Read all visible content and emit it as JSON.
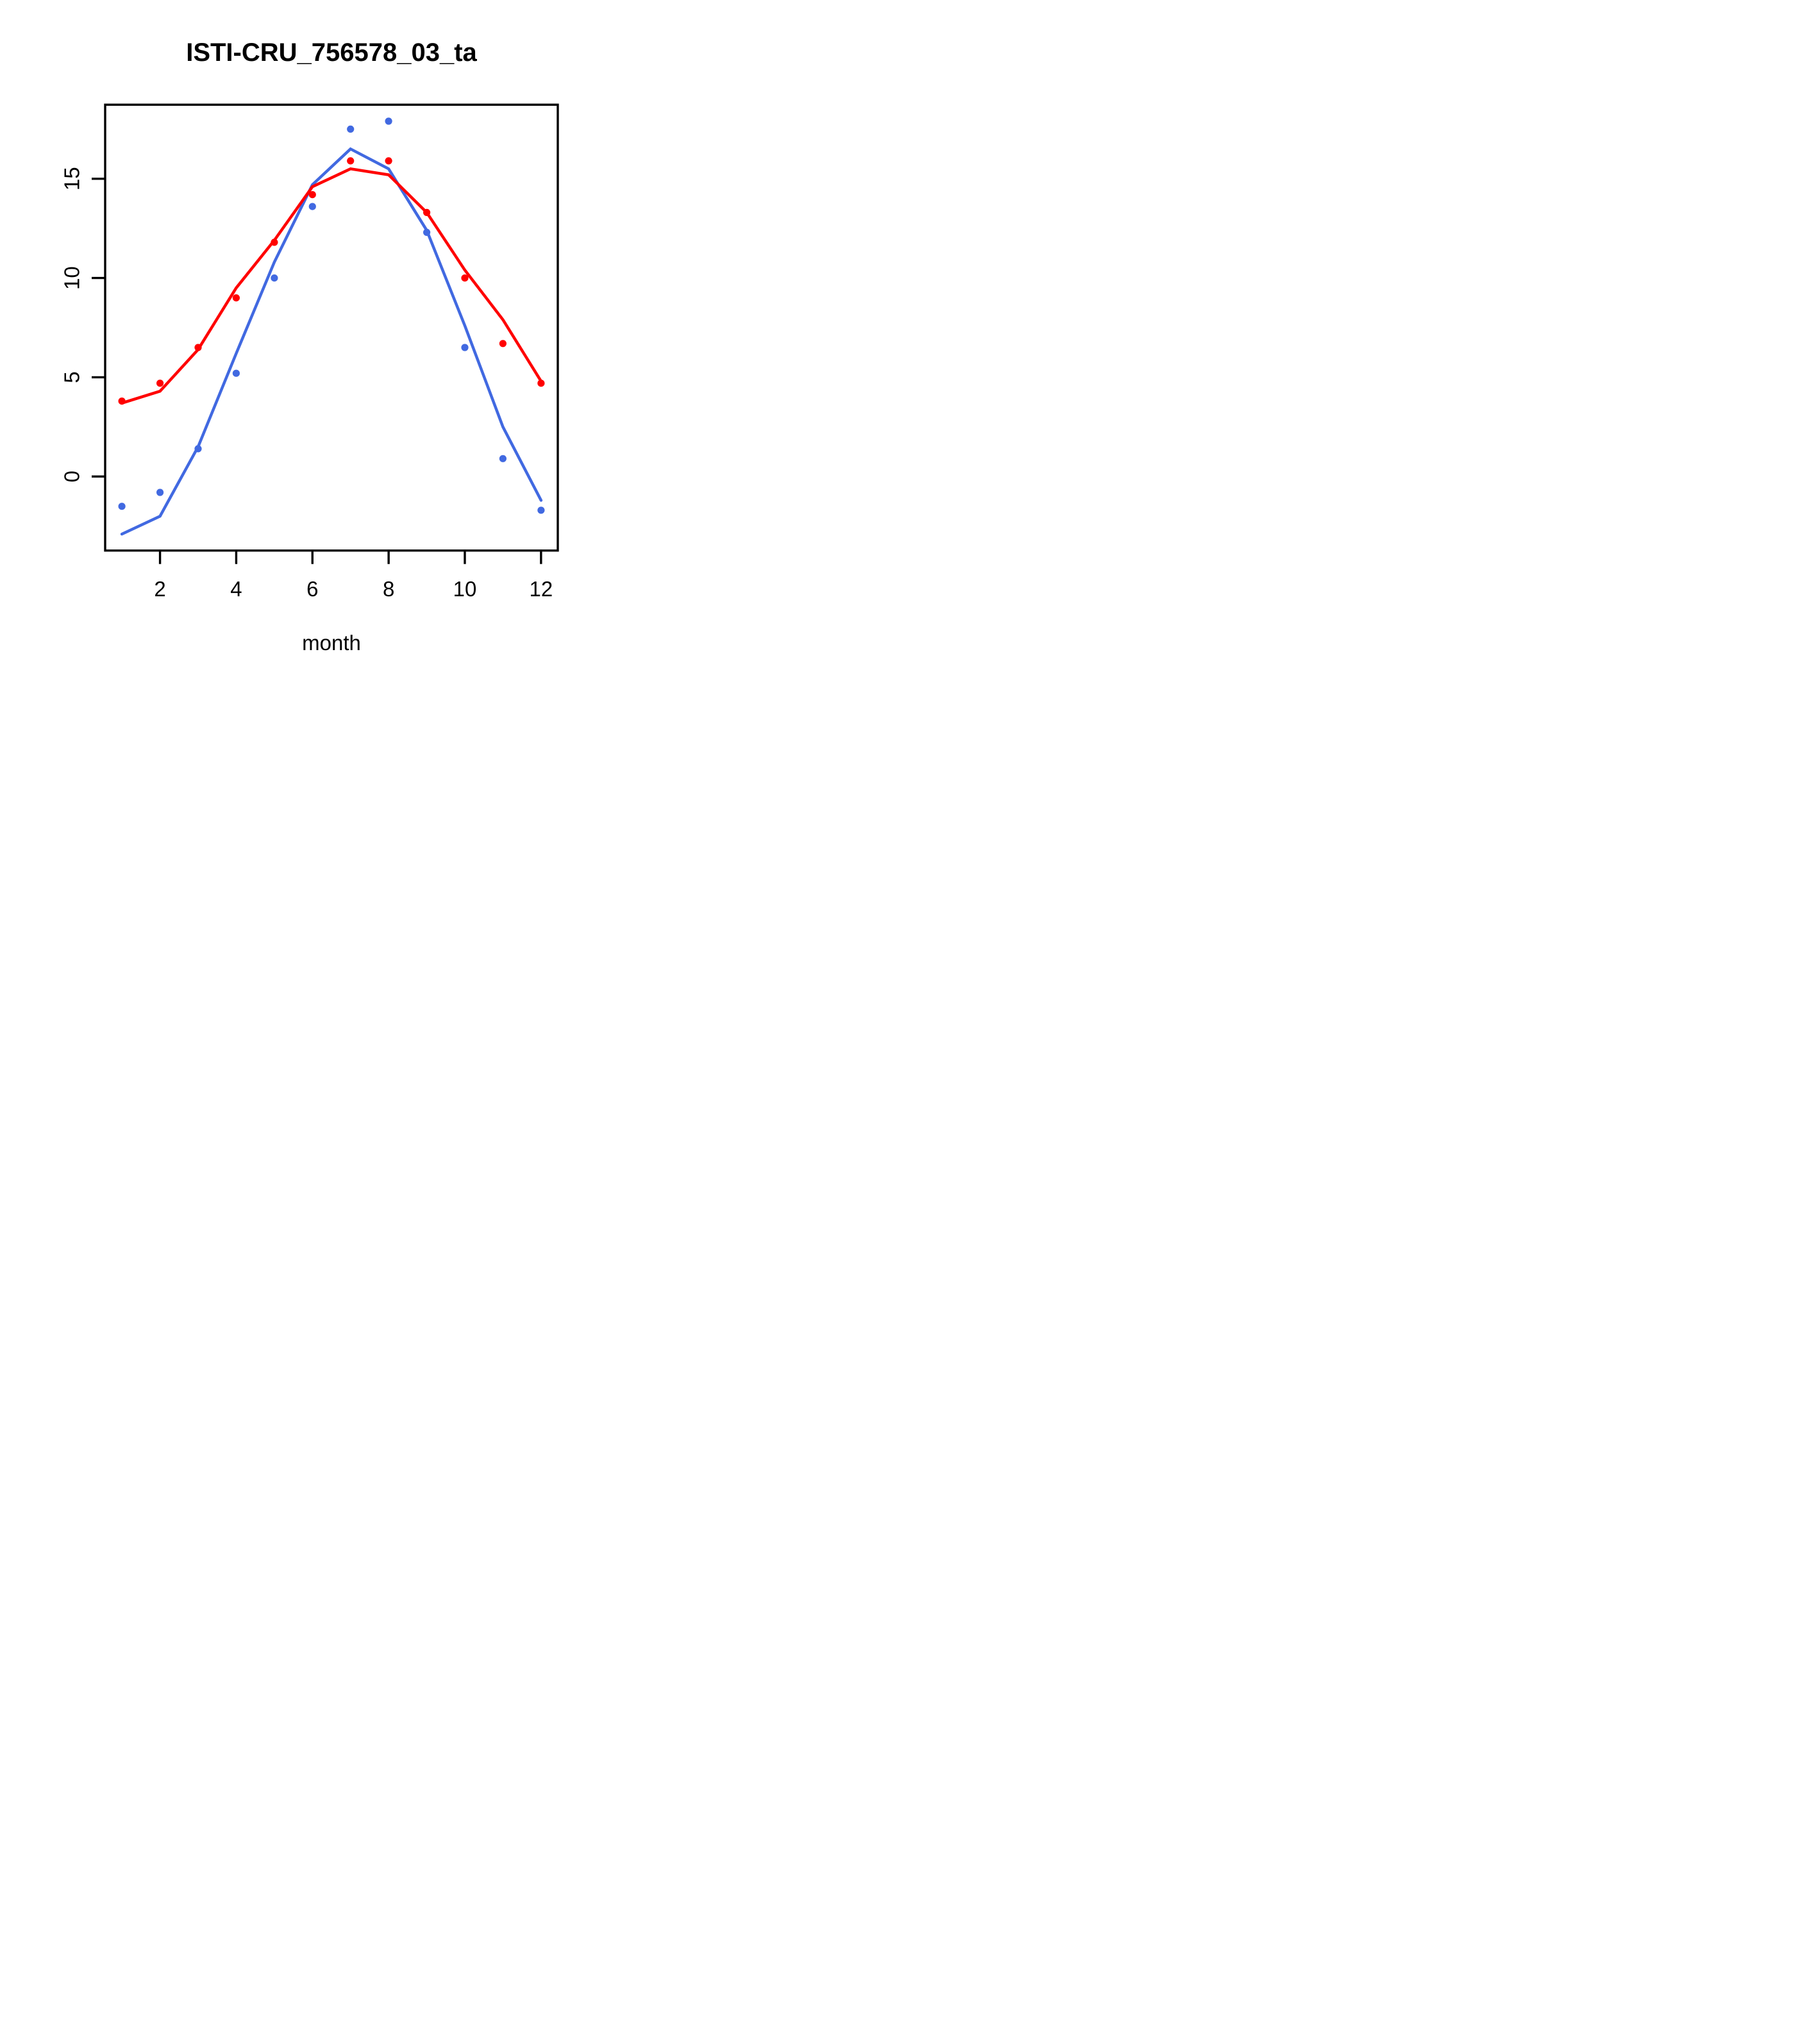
{
  "chart_data": {
    "type": "line",
    "title": "ISTI-CRU_756578_03_ta",
    "xlabel": "month",
    "ylabel": "",
    "x": [
      1,
      2,
      3,
      4,
      5,
      6,
      7,
      8,
      9,
      10,
      11,
      12
    ],
    "xlim": [
      0.56,
      12.44
    ],
    "ylim": [
      -3.73,
      18.73
    ],
    "x_ticks": [
      2,
      4,
      6,
      8,
      10,
      12
    ],
    "y_ticks": [
      0,
      5,
      10,
      15
    ],
    "grid": false,
    "legend": "none",
    "background_color": "#ffffff",
    "axis_color": "#000000",
    "series": [
      {
        "name": "blue-line",
        "label": "station fit line (blue)",
        "type": "line",
        "color": "#4169E1",
        "values": [
          -2.9,
          -2.0,
          1.5,
          6.2,
          10.8,
          14.7,
          16.5,
          15.5,
          12.4,
          7.6,
          2.5,
          -1.2
        ]
      },
      {
        "name": "red-line",
        "label": "reference fit line (red)",
        "type": "line",
        "color": "#FF0000",
        "values": [
          3.7,
          4.3,
          6.4,
          9.5,
          11.9,
          14.6,
          15.5,
          15.2,
          13.3,
          10.4,
          7.9,
          4.8
        ]
      },
      {
        "name": "blue-points",
        "label": "station monthly values (blue dots)",
        "type": "scatter",
        "color": "#4169E1",
        "values": [
          -1.5,
          -0.8,
          1.4,
          5.2,
          10.0,
          13.6,
          17.5,
          17.9,
          12.3,
          6.5,
          0.9,
          -1.7
        ]
      },
      {
        "name": "red-points",
        "label": "reference monthly values (red dots)",
        "type": "scatter",
        "color": "#FF0000",
        "values": [
          3.8,
          4.7,
          6.5,
          9.0,
          11.8,
          14.2,
          15.9,
          15.9,
          13.3,
          10.0,
          6.7,
          4.7
        ]
      }
    ]
  }
}
